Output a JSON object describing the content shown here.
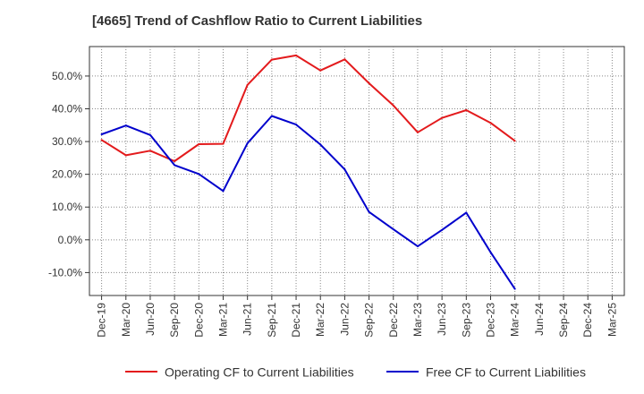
{
  "chart_data": {
    "type": "line",
    "title": "[4665]  Trend of Cashflow Ratio to Current Liabilities",
    "x": [
      "Dec-19",
      "Mar-20",
      "Jun-20",
      "Sep-20",
      "Dec-20",
      "Mar-21",
      "Jun-21",
      "Sep-21",
      "Dec-21",
      "Mar-22",
      "Jun-22",
      "Sep-22",
      "Dec-22",
      "Mar-23",
      "Jun-23",
      "Sep-23",
      "Dec-23",
      "Mar-24",
      "Jun-24",
      "Sep-24",
      "Dec-24",
      "Mar-25"
    ],
    "ylim": [
      -17,
      59
    ],
    "yticks": [
      -10,
      0,
      10,
      20,
      30,
      40,
      50
    ],
    "ytick_labels": [
      "-10.0%",
      "0.0%",
      "10.0%",
      "20.0%",
      "30.0%",
      "40.0%",
      "50.0%"
    ],
    "grid": true,
    "legend_position": "bottom",
    "series": [
      {
        "name": "Operating CF to Current Liabilities",
        "color": "#e31a1c",
        "values": [
          30.5,
          25.8,
          27.2,
          24.0,
          29.2,
          29.3,
          47.3,
          55.0,
          56.3,
          51.7,
          55.1,
          47.8,
          41.0,
          32.8,
          37.2,
          39.6,
          35.7,
          30.2,
          null,
          null,
          null,
          null
        ]
      },
      {
        "name": "Free CF to Current Liabilities",
        "color": "#0000cc",
        "values": [
          32.2,
          34.9,
          32.0,
          22.8,
          20.1,
          14.9,
          29.5,
          37.8,
          35.2,
          29.1,
          21.5,
          8.5,
          3.2,
          -2.0,
          3.0,
          8.3,
          -3.8,
          -15.0,
          null,
          null,
          null,
          null
        ]
      }
    ]
  }
}
